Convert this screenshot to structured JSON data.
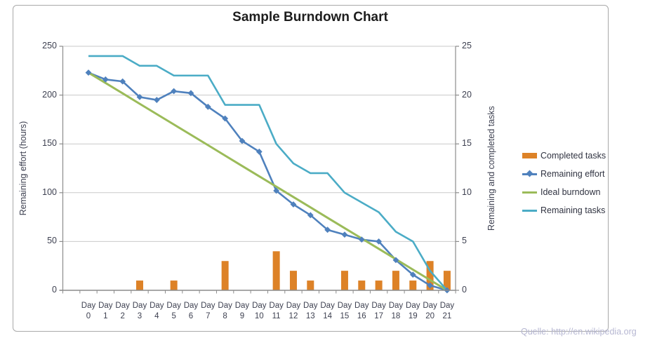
{
  "title": "Sample Burndown Chart",
  "watermark": "Quelle: http://en.wikipedia.org",
  "axes": {
    "left": {
      "title": "Remaining effort (hours)",
      "ticks": [
        0,
        50,
        100,
        150,
        200,
        250
      ],
      "range": [
        0,
        250
      ]
    },
    "right": {
      "title": "Remaining and completed tasks",
      "ticks": [
        0,
        5,
        10,
        15,
        20,
        25
      ],
      "range": [
        0,
        25
      ]
    },
    "x": {
      "word": "Day"
    }
  },
  "legend": [
    {
      "label": "Completed tasks",
      "type": "bar",
      "color": "#dd8227"
    },
    {
      "label": "Remaining effort",
      "type": "line-diamond",
      "color": "#4f81bd"
    },
    {
      "label": "Ideal burndown",
      "type": "line",
      "color": "#9bbb59"
    },
    {
      "label": "Remaining tasks",
      "type": "line",
      "color": "#4bacc6"
    }
  ],
  "colors": {
    "gridline": "#c9c9c9",
    "axis_line": "#8c8c8c",
    "bar": "#dd8227",
    "effort": "#4f81bd",
    "ideal": "#9bbb59",
    "tasks": "#4bacc6"
  },
  "chart_data": {
    "type": "combo (bar + line, dual axis)",
    "title": "Sample Burndown Chart",
    "categories": [
      "Day 0",
      "Day 1",
      "Day 2",
      "Day 3",
      "Day 4",
      "Day 5",
      "Day 6",
      "Day 7",
      "Day 8",
      "Day 9",
      "Day 10",
      "Day 11",
      "Day 12",
      "Day 13",
      "Day 14",
      "Day 15",
      "Day 16",
      "Day 17",
      "Day 18",
      "Day 19",
      "Day 20",
      "Day 21"
    ],
    "left_axis": {
      "label": "Remaining effort (hours)",
      "ylim": [
        0,
        250
      ],
      "ticks": [
        0,
        50,
        100,
        150,
        200,
        250
      ]
    },
    "right_axis": {
      "label": "Remaining and completed tasks",
      "ylim": [
        0,
        25
      ],
      "ticks": [
        0,
        5,
        10,
        15,
        20,
        25
      ]
    },
    "grid": "horizontal",
    "legend_position": "right",
    "series": [
      {
        "name": "Completed tasks",
        "type": "bar",
        "axis": "right",
        "color": "#dd8227",
        "values": [
          0,
          0,
          0,
          1,
          0,
          1,
          0,
          0,
          3,
          0,
          0,
          4,
          2,
          1,
          0,
          2,
          1,
          1,
          2,
          1,
          3,
          2
        ]
      },
      {
        "name": "Remaining effort",
        "type": "line",
        "marker": "diamond",
        "axis": "left",
        "color": "#4f81bd",
        "values": [
          223,
          216,
          214,
          198,
          195,
          204,
          202,
          188,
          176,
          153,
          142,
          102,
          88,
          77,
          62,
          57,
          52,
          50,
          31,
          16,
          5,
          0
        ]
      },
      {
        "name": "Ideal burndown",
        "type": "line",
        "axis": "left",
        "color": "#9bbb59",
        "values": [
          223,
          212.4,
          201.8,
          191.1,
          180.5,
          169.9,
          159.3,
          148.7,
          138,
          127.4,
          116.8,
          106.2,
          95.6,
          85,
          74.3,
          63.7,
          53.1,
          42.5,
          31.9,
          21.2,
          10.6,
          0
        ]
      },
      {
        "name": "Remaining tasks",
        "type": "line",
        "axis": "right",
        "color": "#4bacc6",
        "values": [
          24,
          24,
          24,
          23,
          23,
          22,
          22,
          22,
          19,
          19,
          19,
          15,
          13,
          12,
          12,
          10,
          9,
          8,
          6,
          5,
          2,
          0
        ]
      }
    ]
  }
}
